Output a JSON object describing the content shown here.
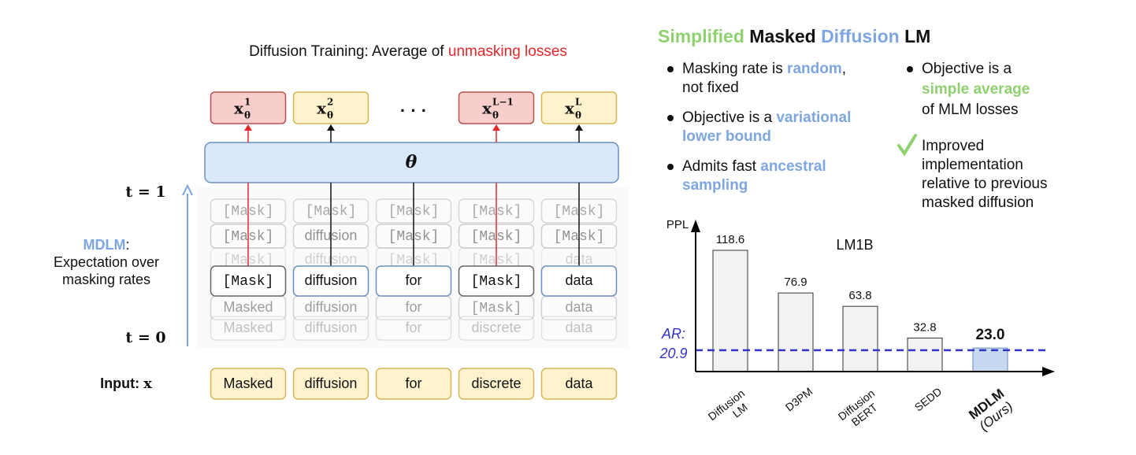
{
  "diagram": {
    "title": [
      {
        "text": "Diffusion Training: Average of "
      },
      {
        "text": "unmasking losses",
        "emph": "red"
      }
    ],
    "outputs": [
      {
        "base": "x",
        "sup": "1",
        "sub": "θ",
        "color": "red"
      },
      {
        "base": "x",
        "sup": "2",
        "sub": "θ",
        "color": "yellow"
      },
      {
        "text": "· · ·"
      },
      {
        "base": "x",
        "sup": "L−1",
        "sub": "θ",
        "color": "red"
      },
      {
        "base": "x",
        "sup": "L",
        "sub": "θ",
        "color": "yellow"
      }
    ],
    "model_label": "θ",
    "time_labels": {
      "top": "t = 1",
      "bottom": "t = 0"
    },
    "expectation_label": [
      [
        {
          "text": "MDLM",
          "emph": "blue"
        },
        {
          "text": ":"
        }
      ],
      [
        {
          "text": "Expectation over"
        }
      ],
      [
        {
          "text": "masking rates"
        }
      ]
    ],
    "rows_above": [
      [
        "[Mask]",
        "[Mask]",
        "[Mask]",
        "[Mask]",
        "[Mask]"
      ],
      [
        "[Mask]",
        "diffusion",
        "[Mask]",
        "[Mask]",
        "[Mask]"
      ],
      [
        "[Mask]",
        "diffusion",
        "[Mask]",
        "[Mask]",
        "data"
      ]
    ],
    "current_row": [
      "[Mask]",
      "diffusion",
      "for",
      "[Mask]",
      "data"
    ],
    "rows_below": [
      [
        "Masked",
        "diffusion",
        "for",
        "[Mask]",
        "data"
      ],
      [
        "Masked",
        "diffusion",
        "for",
        "discrete",
        "data"
      ]
    ],
    "input_label": [
      {
        "text": "Input: "
      },
      {
        "text": "x",
        "emph": "math"
      }
    ],
    "input_tokens": [
      "Masked",
      "diffusion",
      "for",
      "discrete",
      "data"
    ]
  },
  "summary": {
    "title": [
      {
        "text": "Simplified",
        "emph": "green"
      },
      {
        "text": " Masked "
      },
      {
        "text": "Diffusion",
        "emph": "blue"
      },
      {
        "text": " LM"
      }
    ],
    "bullets_left": [
      [
        [
          {
            "text": "Masking rate is "
          },
          {
            "text": "random",
            "emph": "blue"
          },
          {
            "text": ","
          }
        ],
        [
          {
            "text": "not fixed"
          }
        ]
      ],
      [
        [
          {
            "text": "Objective is a "
          },
          {
            "text": "variational",
            "emph": "blue"
          }
        ],
        [
          {
            "text": "lower bound",
            "emph": "blue"
          }
        ]
      ],
      [
        [
          {
            "text": "Admits fast "
          },
          {
            "text": "ancestral",
            "emph": "blue"
          }
        ],
        [
          {
            "text": "sampling",
            "emph": "blue"
          }
        ]
      ]
    ],
    "bullets_right": [
      [
        [
          {
            "text": "Objective is a"
          }
        ],
        [
          {
            "text": "simple average",
            "emph": "green"
          }
        ],
        [
          {
            "text": "of MLM losses"
          }
        ]
      ]
    ],
    "check_item": [
      [
        {
          "text": "Improved"
        }
      ],
      [
        {
          "text": "implementation"
        }
      ],
      [
        {
          "text": "relative to previous"
        }
      ],
      [
        {
          "text": "masked diffusion"
        }
      ]
    ]
  },
  "chart_data": {
    "type": "bar",
    "title": "LM1B",
    "y_label": "PPL",
    "categories": [
      "Diffusion LM",
      "D3PM",
      "Diffusion BERT",
      "SEDD",
      "MDLM (Ours)"
    ],
    "values": [
      118.6,
      76.9,
      63.8,
      32.8,
      23.0
    ],
    "value_labels": [
      "118.6",
      "76.9",
      "63.8",
      "32.8",
      "23.0"
    ],
    "colors": [
      "#f2f2f2",
      "#f2f2f2",
      "#f2f2f2",
      "#f2f2f2",
      "#c6d9f1"
    ],
    "emphasized": [
      false,
      false,
      false,
      false,
      true
    ],
    "ylim": [
      0,
      144
    ],
    "reference_line": {
      "label": "AR:",
      "value": 20.9,
      "color": "#3333cc"
    }
  }
}
